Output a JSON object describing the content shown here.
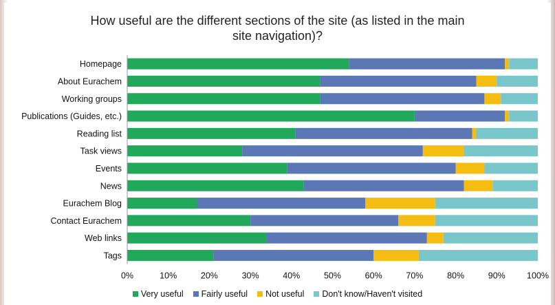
{
  "chart_data": {
    "type": "bar",
    "orientation": "horizontal",
    "stacked": true,
    "title_lines": [
      "How useful are the different sections of the site (as listed in the main",
      "site navigation)?"
    ],
    "categories": [
      "Homepage",
      "About Eurachem",
      "Working groups",
      "Publications (Guides, etc.)",
      "Reading list",
      "Task views",
      "Events",
      "News",
      "Eurachem Blog",
      "Contact Eurachem",
      "Web links",
      "Tags"
    ],
    "series": [
      {
        "name": "Very useful",
        "color": "#22a85a",
        "values": [
          54,
          47,
          47,
          70,
          41,
          28,
          39,
          43,
          17,
          30,
          34,
          21
        ]
      },
      {
        "name": "Fairly useful",
        "color": "#5b77b5",
        "values": [
          38,
          38,
          40,
          22,
          43,
          44,
          41,
          39,
          41,
          36,
          39,
          39
        ]
      },
      {
        "name": "Not useful",
        "color": "#f5bd12",
        "values": [
          1,
          5,
          4,
          1,
          1,
          10,
          7,
          7,
          17,
          9,
          4,
          11
        ]
      },
      {
        "name": "Don't know/Haven't visited",
        "color": "#79c7cb",
        "values": [
          7,
          10,
          9,
          7,
          15,
          18,
          13,
          11,
          25,
          25,
          23,
          29
        ]
      }
    ],
    "xlim": [
      0,
      100
    ],
    "xticks": [
      "0%",
      "10%",
      "20%",
      "30%",
      "40%",
      "50%",
      "60%",
      "70%",
      "80%",
      "90%",
      "100%"
    ],
    "legend_position": "bottom"
  }
}
